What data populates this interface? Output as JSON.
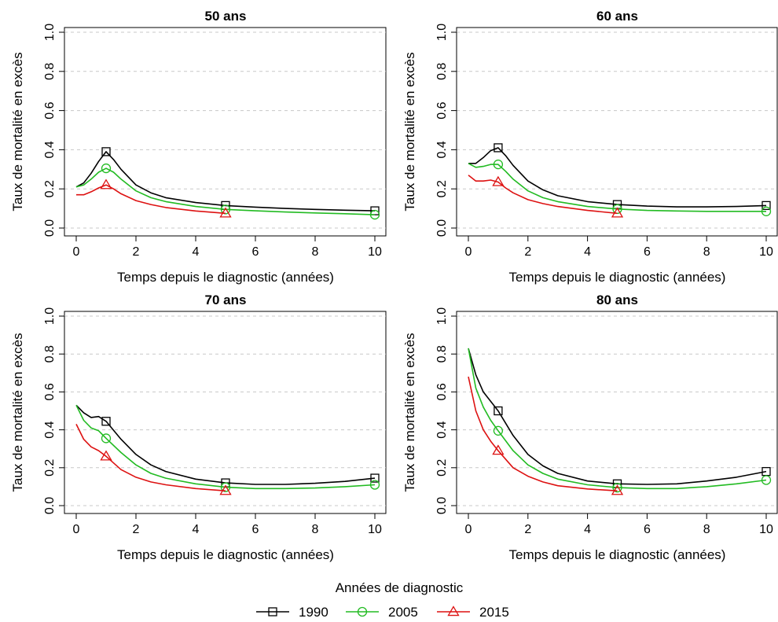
{
  "chart_data": {
    "type": "line",
    "legend": {
      "title": "Années de diagnostic",
      "position": "bottom-center",
      "entries": [
        {
          "label": "1990",
          "color": "#000000",
          "marker": "square"
        },
        {
          "label": "2005",
          "color": "#22bb22",
          "marker": "circle"
        },
        {
          "label": "2015",
          "color": "#dd1111",
          "marker": "triangle"
        }
      ]
    },
    "xlim": [
      0,
      10
    ],
    "ylim": [
      0,
      1.0
    ],
    "xticks": [
      "0",
      "2",
      "4",
      "6",
      "8",
      "10"
    ],
    "yticks": [
      "0.0",
      "0.2",
      "0.4",
      "0.6",
      "0.8",
      "1.0"
    ],
    "grid": "horizontal-dashed",
    "panels": [
      {
        "title": "50 ans",
        "xlabel": "Temps depuis le diagnostic (années)",
        "ylabel": "Taux de mortalité en excès",
        "series": [
          {
            "name": "1990",
            "color": "#000000",
            "marker": "square",
            "x": [
              0,
              0.25,
              0.5,
              0.75,
              1,
              1.25,
              1.5,
              2,
              2.5,
              3,
              4,
              5,
              6,
              7,
              8,
              9,
              10
            ],
            "y": [
              0.21,
              0.23,
              0.28,
              0.34,
              0.39,
              0.35,
              0.3,
              0.22,
              0.18,
              0.155,
              0.13,
              0.115,
              0.107,
              0.1,
              0.095,
              0.091,
              0.088
            ],
            "markers_x": [
              1,
              5,
              10
            ],
            "markers_y": [
              0.39,
              0.115,
              0.088
            ]
          },
          {
            "name": "2005",
            "color": "#22bb22",
            "marker": "circle",
            "x": [
              0,
              0.25,
              0.5,
              0.75,
              1,
              1.25,
              1.5,
              2,
              2.5,
              3,
              4,
              5,
              6,
              7,
              8,
              9,
              10
            ],
            "y": [
              0.21,
              0.22,
              0.25,
              0.285,
              0.305,
              0.285,
              0.25,
              0.19,
              0.155,
              0.135,
              0.11,
              0.095,
              0.088,
              0.082,
              0.077,
              0.073,
              0.068
            ],
            "markers_x": [
              1,
              5,
              10
            ],
            "markers_y": [
              0.305,
              0.095,
              0.068
            ]
          },
          {
            "name": "2015",
            "color": "#dd1111",
            "marker": "triangle",
            "x": [
              0,
              0.25,
              0.5,
              0.75,
              1,
              1.25,
              1.5,
              2,
              2.5,
              3,
              4,
              5
            ],
            "y": [
              0.17,
              0.17,
              0.185,
              0.205,
              0.22,
              0.2,
              0.175,
              0.14,
              0.12,
              0.105,
              0.087,
              0.075
            ],
            "markers_x": [
              1,
              5
            ],
            "markers_y": [
              0.22,
              0.075
            ]
          }
        ]
      },
      {
        "title": "60 ans",
        "xlabel": "Temps depuis le diagnostic (années)",
        "ylabel": "Taux de mortalité en excès",
        "series": [
          {
            "name": "1990",
            "color": "#000000",
            "marker": "square",
            "x": [
              0,
              0.25,
              0.5,
              0.75,
              1,
              1.25,
              1.5,
              2,
              2.5,
              3,
              4,
              5,
              6,
              7,
              8,
              9,
              10
            ],
            "y": [
              0.33,
              0.33,
              0.36,
              0.395,
              0.41,
              0.37,
              0.32,
              0.24,
              0.195,
              0.165,
              0.135,
              0.12,
              0.112,
              0.108,
              0.108,
              0.11,
              0.115
            ],
            "markers_x": [
              1,
              5,
              10
            ],
            "markers_y": [
              0.41,
              0.12,
              0.115
            ]
          },
          {
            "name": "2005",
            "color": "#22bb22",
            "marker": "circle",
            "x": [
              0,
              0.25,
              0.5,
              0.75,
              1,
              1.25,
              1.5,
              2,
              2.5,
              3,
              4,
              5,
              6,
              7,
              8,
              9,
              10
            ],
            "y": [
              0.33,
              0.31,
              0.315,
              0.325,
              0.325,
              0.29,
              0.25,
              0.19,
              0.155,
              0.135,
              0.11,
              0.097,
              0.09,
              0.087,
              0.085,
              0.085,
              0.085
            ],
            "markers_x": [
              1,
              5,
              10
            ],
            "markers_y": [
              0.325,
              0.097,
              0.085
            ]
          },
          {
            "name": "2015",
            "color": "#dd1111",
            "marker": "triangle",
            "x": [
              0,
              0.25,
              0.5,
              0.75,
              1,
              1.25,
              1.5,
              2,
              2.5,
              3,
              4,
              5
            ],
            "y": [
              0.27,
              0.24,
              0.24,
              0.245,
              0.235,
              0.205,
              0.18,
              0.145,
              0.125,
              0.11,
              0.09,
              0.075
            ],
            "markers_x": [
              1,
              5
            ],
            "markers_y": [
              0.235,
              0.075
            ]
          }
        ]
      },
      {
        "title": "70 ans",
        "xlabel": "Temps depuis le diagnostic (années)",
        "ylabel": "Taux de mortalité en excès",
        "series": [
          {
            "name": "1990",
            "color": "#000000",
            "marker": "square",
            "x": [
              0,
              0.25,
              0.5,
              0.75,
              1,
              1.5,
              2,
              2.5,
              3,
              4,
              5,
              6,
              7,
              8,
              9,
              10
            ],
            "y": [
              0.53,
              0.49,
              0.465,
              0.47,
              0.445,
              0.35,
              0.27,
              0.215,
              0.18,
              0.14,
              0.12,
              0.112,
              0.112,
              0.118,
              0.128,
              0.145
            ],
            "markers_x": [
              1,
              5,
              10
            ],
            "markers_y": [
              0.445,
              0.12,
              0.145
            ]
          },
          {
            "name": "2005",
            "color": "#22bb22",
            "marker": "circle",
            "x": [
              0,
              0.25,
              0.5,
              0.75,
              1,
              1.5,
              2,
              2.5,
              3,
              4,
              5,
              6,
              7,
              8,
              9,
              10
            ],
            "y": [
              0.53,
              0.45,
              0.41,
              0.395,
              0.355,
              0.28,
              0.215,
              0.17,
              0.145,
              0.115,
              0.097,
              0.09,
              0.09,
              0.093,
              0.1,
              0.11
            ],
            "markers_x": [
              1,
              5,
              10
            ],
            "markers_y": [
              0.355,
              0.097,
              0.11
            ]
          },
          {
            "name": "2015",
            "color": "#dd1111",
            "marker": "triangle",
            "x": [
              0,
              0.25,
              0.5,
              0.75,
              1,
              1.5,
              2,
              2.5,
              3,
              4,
              5
            ],
            "y": [
              0.43,
              0.35,
              0.31,
              0.29,
              0.26,
              0.19,
              0.15,
              0.125,
              0.11,
              0.09,
              0.078
            ],
            "markers_x": [
              1,
              5
            ],
            "markers_y": [
              0.26,
              0.078
            ]
          }
        ]
      },
      {
        "title": "80 ans",
        "xlabel": "Temps depuis le diagnostic (années)",
        "ylabel": "Taux de mortalité en excès",
        "series": [
          {
            "name": "1990",
            "color": "#000000",
            "marker": "square",
            "x": [
              0,
              0.25,
              0.5,
              0.75,
              1,
              1.5,
              2,
              2.5,
              3,
              4,
              5,
              6,
              7,
              8,
              9,
              10
            ],
            "y": [
              0.83,
              0.69,
              0.6,
              0.55,
              0.5,
              0.37,
              0.27,
              0.21,
              0.17,
              0.13,
              0.115,
              0.112,
              0.115,
              0.13,
              0.15,
              0.18
            ],
            "markers_x": [
              1,
              5,
              10
            ],
            "markers_y": [
              0.5,
              0.115,
              0.18
            ]
          },
          {
            "name": "2005",
            "color": "#22bb22",
            "marker": "circle",
            "x": [
              0,
              0.25,
              0.5,
              0.75,
              1,
              1.5,
              2,
              2.5,
              3,
              4,
              5,
              6,
              7,
              8,
              9,
              10
            ],
            "y": [
              0.83,
              0.62,
              0.52,
              0.45,
              0.395,
              0.29,
              0.215,
              0.17,
              0.14,
              0.11,
              0.095,
              0.09,
              0.09,
              0.1,
              0.115,
              0.135
            ],
            "markers_x": [
              1,
              5,
              10
            ],
            "markers_y": [
              0.395,
              0.095,
              0.135
            ]
          },
          {
            "name": "2015",
            "color": "#dd1111",
            "marker": "triangle",
            "x": [
              0,
              0.25,
              0.5,
              0.75,
              1,
              1.5,
              2,
              2.5,
              3,
              4,
              5
            ],
            "y": [
              0.68,
              0.5,
              0.4,
              0.34,
              0.29,
              0.2,
              0.155,
              0.125,
              0.105,
              0.088,
              0.078
            ],
            "markers_x": [
              1,
              5
            ],
            "markers_y": [
              0.29,
              0.078
            ]
          }
        ]
      }
    ]
  }
}
